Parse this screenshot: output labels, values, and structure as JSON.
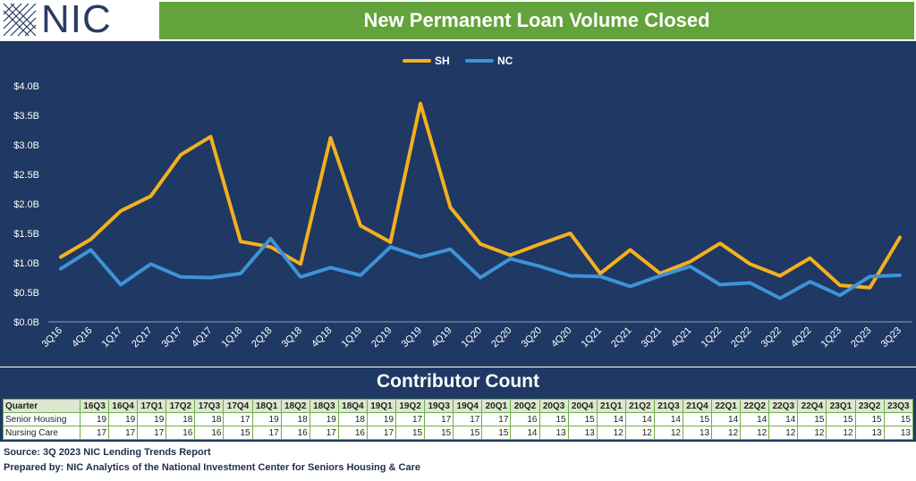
{
  "header": {
    "logo_text": "NIC",
    "title": "New Permanent Loan Volume Closed"
  },
  "colors": {
    "background": "#1f3864",
    "title_bar": "#63a33b",
    "sh": "#f5b01e",
    "nc": "#3e93d6"
  },
  "chart_data": {
    "type": "line",
    "title": "New Permanent Loan Volume Closed",
    "x": [
      "3Q16",
      "4Q16",
      "1Q17",
      "2Q17",
      "3Q17",
      "4Q17",
      "1Q18",
      "2Q18",
      "3Q18",
      "4Q18",
      "1Q19",
      "2Q19",
      "3Q19",
      "4Q19",
      "1Q20",
      "2Q20",
      "3Q20",
      "4Q20",
      "1Q21",
      "2Q21",
      "3Q21",
      "4Q21",
      "1Q22",
      "2Q22",
      "3Q22",
      "4Q22",
      "1Q23",
      "2Q23",
      "3Q23"
    ],
    "series": [
      {
        "name": "SH",
        "values": [
          1.1,
          1.4,
          1.88,
          2.13,
          2.83,
          3.14,
          1.36,
          1.27,
          0.98,
          3.12,
          1.63,
          1.35,
          3.7,
          1.94,
          1.32,
          1.13,
          1.32,
          1.5,
          0.82,
          1.22,
          0.82,
          1.02,
          1.33,
          0.98,
          0.78,
          1.08,
          0.62,
          0.58,
          1.43
        ]
      },
      {
        "name": "NC",
        "values": [
          0.9,
          1.22,
          0.63,
          0.98,
          0.76,
          0.75,
          0.82,
          1.41,
          0.76,
          0.92,
          0.79,
          1.27,
          1.1,
          1.23,
          0.75,
          1.07,
          0.94,
          0.78,
          0.77,
          0.6,
          0.78,
          0.94,
          0.63,
          0.66,
          0.4,
          0.68,
          0.45,
          0.77,
          0.79
        ]
      }
    ],
    "yticks": [
      "$4.0B",
      "$3.5B",
      "$3.0B",
      "$2.5B",
      "$2.0B",
      "$1.5B",
      "$1.0B",
      "$0.5B",
      "$0.0B"
    ],
    "ylim": [
      0,
      4.0
    ],
    "grid": false,
    "legend": "top-center"
  },
  "contributor": {
    "title": "Contributor Count",
    "header_label": "Quarter",
    "quarters": [
      "16Q3",
      "16Q4",
      "17Q1",
      "17Q2",
      "17Q3",
      "17Q4",
      "18Q1",
      "18Q2",
      "18Q3",
      "18Q4",
      "19Q1",
      "19Q2",
      "19Q3",
      "19Q4",
      "20Q1",
      "20Q2",
      "20Q3",
      "20Q4",
      "21Q1",
      "21Q2",
      "21Q3",
      "21Q4",
      "22Q1",
      "22Q2",
      "22Q3",
      "22Q4",
      "23Q1",
      "23Q2",
      "23Q3"
    ],
    "rows": [
      {
        "label": "Senior Housing",
        "values": [
          19,
          19,
          19,
          18,
          18,
          17,
          19,
          18,
          19,
          18,
          19,
          17,
          17,
          17,
          17,
          16,
          15,
          15,
          14,
          14,
          14,
          15,
          14,
          14,
          14,
          15,
          15,
          15,
          15
        ]
      },
      {
        "label": "Nursing Care",
        "values": [
          17,
          17,
          17,
          16,
          16,
          15,
          17,
          16,
          17,
          16,
          17,
          15,
          15,
          15,
          15,
          14,
          13,
          13,
          12,
          12,
          12,
          13,
          12,
          12,
          12,
          12,
          12,
          13,
          13
        ]
      }
    ]
  },
  "footer": {
    "source": "Source: 3Q 2023 NIC Lending Trends Report",
    "prepared": "Prepared by: NIC Analytics of the National Investment Center for Seniors Housing & Care"
  }
}
